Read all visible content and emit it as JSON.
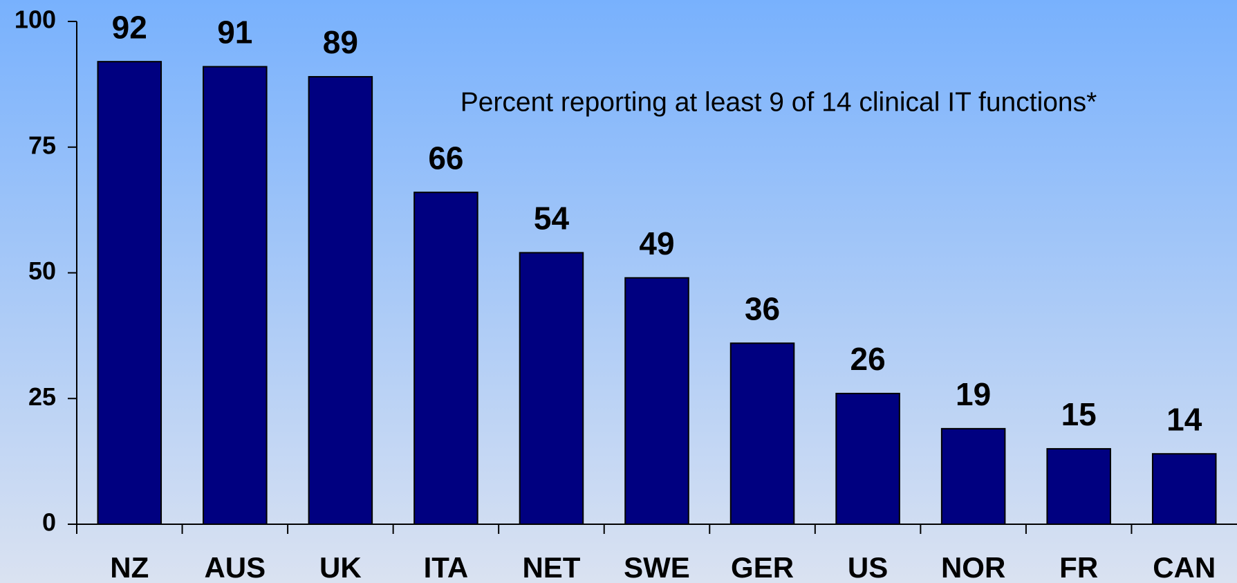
{
  "chart_data": {
    "type": "bar",
    "annotation": "Percent reporting at least 9 of 14 clinical IT functions*",
    "categories": [
      "NZ",
      "AUS",
      "UK",
      "ITA",
      "NET",
      "SWE",
      "GER",
      "US",
      "NOR",
      "FR",
      "CAN"
    ],
    "values": [
      92,
      91,
      89,
      66,
      54,
      49,
      36,
      26,
      19,
      15,
      14
    ],
    "color": "#000080",
    "ylim": [
      0,
      100
    ],
    "yticks": [
      0,
      25,
      50,
      75,
      100
    ],
    "grid": false
  }
}
